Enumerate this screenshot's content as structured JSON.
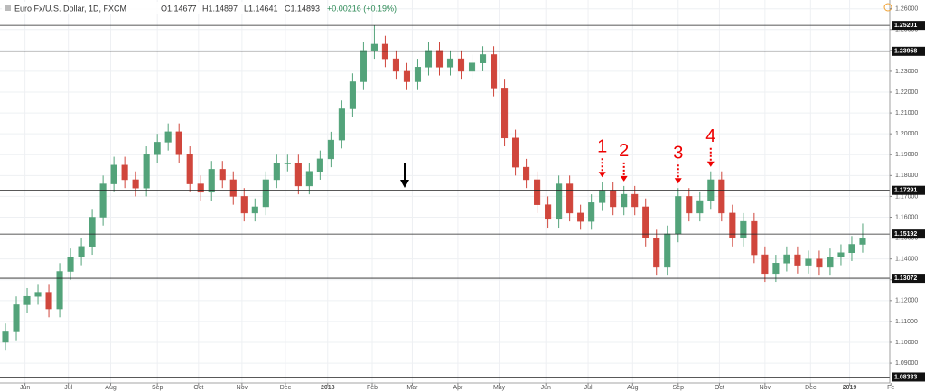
{
  "chart_data": {
    "type": "candlestick",
    "title": "Euro Fx/U.S. Dollar, 1D, FXCM",
    "ohlc_header": [
      "O1.14677",
      "H1.14897",
      "L1.14641",
      "C1.14893",
      "+0.00216 (+0.19%)"
    ],
    "up_color": "#53a37a",
    "down_color": "#d0463c",
    "grid": true,
    "open": [
      1.1,
      1.105,
      1.118,
      1.122,
      1.124,
      1.116,
      1.134,
      1.141,
      1.146,
      1.16,
      1.176,
      1.185,
      1.178,
      1.174,
      1.19,
      1.196,
      1.201,
      1.19,
      1.176,
      1.172,
      1.183,
      1.178,
      1.17,
      1.162,
      1.165,
      1.178,
      1.186,
      1.186,
      1.175,
      1.182,
      1.188,
      1.197,
      1.212,
      1.225,
      1.24,
      1.243,
      1.236,
      1.23,
      1.225,
      1.232,
      1.24,
      1.232,
      1.236,
      1.23,
      1.234,
      1.238,
      1.222,
      1.198,
      1.184,
      1.178,
      1.166,
      1.159,
      1.176,
      1.162,
      1.158,
      1.167,
      1.173,
      1.165,
      1.171,
      1.165,
      1.15,
      1.136,
      1.152,
      1.17,
      1.162,
      1.168,
      1.178,
      1.162,
      1.15,
      1.158,
      1.142,
      1.133,
      1.138,
      1.142,
      1.137,
      1.14,
      1.136,
      1.141,
      1.143,
      1.147
    ],
    "high": [
      1.109,
      1.122,
      1.126,
      1.128,
      1.128,
      1.138,
      1.145,
      1.15,
      1.164,
      1.18,
      1.189,
      1.189,
      1.182,
      1.194,
      1.2,
      1.205,
      1.205,
      1.194,
      1.18,
      1.187,
      1.187,
      1.182,
      1.174,
      1.169,
      1.182,
      1.19,
      1.19,
      1.19,
      1.186,
      1.192,
      1.201,
      1.216,
      1.229,
      1.244,
      1.252,
      1.247,
      1.24,
      1.234,
      1.236,
      1.244,
      1.244,
      1.24,
      1.24,
      1.238,
      1.242,
      1.242,
      1.226,
      1.202,
      1.188,
      1.182,
      1.17,
      1.18,
      1.18,
      1.166,
      1.171,
      1.177,
      1.177,
      1.175,
      1.175,
      1.169,
      1.154,
      1.156,
      1.174,
      1.174,
      1.172,
      1.182,
      1.182,
      1.166,
      1.162,
      1.162,
      1.146,
      1.142,
      1.146,
      1.146,
      1.144,
      1.144,
      1.145,
      1.147,
      1.151,
      1.157
    ],
    "low": [
      1.096,
      1.101,
      1.114,
      1.118,
      1.112,
      1.112,
      1.13,
      1.137,
      1.142,
      1.156,
      1.172,
      1.174,
      1.17,
      1.17,
      1.186,
      1.192,
      1.186,
      1.172,
      1.168,
      1.168,
      1.174,
      1.166,
      1.158,
      1.158,
      1.161,
      1.174,
      1.182,
      1.171,
      1.171,
      1.178,
      1.184,
      1.193,
      1.208,
      1.221,
      1.236,
      1.232,
      1.226,
      1.221,
      1.221,
      1.228,
      1.228,
      1.228,
      1.226,
      1.226,
      1.23,
      1.218,
      1.194,
      1.18,
      1.174,
      1.162,
      1.155,
      1.155,
      1.158,
      1.154,
      1.154,
      1.163,
      1.161,
      1.161,
      1.161,
      1.146,
      1.132,
      1.132,
      1.148,
      1.158,
      1.158,
      1.164,
      1.158,
      1.146,
      1.146,
      1.138,
      1.129,
      1.129,
      1.134,
      1.133,
      1.133,
      1.132,
      1.132,
      1.137,
      1.139,
      1.143
    ],
    "close": [
      1.105,
      1.118,
      1.122,
      1.124,
      1.116,
      1.134,
      1.141,
      1.146,
      1.16,
      1.176,
      1.185,
      1.178,
      1.174,
      1.19,
      1.196,
      1.201,
      1.19,
      1.176,
      1.172,
      1.183,
      1.178,
      1.17,
      1.162,
      1.165,
      1.178,
      1.186,
      1.186,
      1.175,
      1.182,
      1.188,
      1.197,
      1.212,
      1.225,
      1.24,
      1.243,
      1.236,
      1.23,
      1.225,
      1.232,
      1.24,
      1.232,
      1.236,
      1.23,
      1.234,
      1.238,
      1.222,
      1.198,
      1.184,
      1.178,
      1.166,
      1.159,
      1.176,
      1.162,
      1.158,
      1.167,
      1.173,
      1.165,
      1.171,
      1.165,
      1.15,
      1.136,
      1.152,
      1.17,
      1.162,
      1.168,
      1.178,
      1.162,
      1.15,
      1.158,
      1.142,
      1.133,
      1.138,
      1.142,
      1.137,
      1.14,
      1.136,
      1.141,
      1.143,
      1.147,
      1.15
    ],
    "xlim": [
      -0.5,
      81.5
    ],
    "xticks": [
      {
        "value": 1.8,
        "label": "Jun"
      },
      {
        "value": 5.8,
        "label": "Jul"
      },
      {
        "value": 9.7,
        "label": "Aug"
      },
      {
        "value": 14,
        "label": "Sep"
      },
      {
        "value": 17.8,
        "label": "Oct"
      },
      {
        "value": 21.8,
        "label": "Nov"
      },
      {
        "value": 25.8,
        "label": "Dec"
      },
      {
        "value": 29.7,
        "label": "2018"
      },
      {
        "value": 33.8,
        "label": "Feb"
      },
      {
        "value": 37.5,
        "label": "Mar"
      },
      {
        "value": 41.7,
        "label": "Apr"
      },
      {
        "value": 45.5,
        "label": "May"
      },
      {
        "value": 49.8,
        "label": "Jun"
      },
      {
        "value": 53.7,
        "label": "Jul"
      },
      {
        "value": 57.8,
        "label": "Aug"
      },
      {
        "value": 62,
        "label": "Sep"
      },
      {
        "value": 65.8,
        "label": "Oct"
      },
      {
        "value": 70,
        "label": "Nov"
      },
      {
        "value": 74.2,
        "label": "Dec"
      },
      {
        "value": 77.8,
        "label": "2019"
      },
      {
        "value": 81.6,
        "label": "Fe"
      }
    ],
    "ylim": [
      1.0805,
      1.2642
    ],
    "yticks": [
      {
        "value": 1.09,
        "label": "1.09000"
      },
      {
        "value": 1.1,
        "label": "1.10000"
      },
      {
        "value": 1.11,
        "label": "1.11000"
      },
      {
        "value": 1.12,
        "label": "1.12000"
      },
      {
        "value": 1.13,
        "label": "1.13000"
      },
      {
        "value": 1.14,
        "label": "1.14000"
      },
      {
        "value": 1.15,
        "label": "1.15000"
      },
      {
        "value": 1.16,
        "label": "1.16000"
      },
      {
        "value": 1.17,
        "label": "1.17000"
      },
      {
        "value": 1.18,
        "label": "1.18000"
      },
      {
        "value": 1.19,
        "label": "1.19000"
      },
      {
        "value": 1.2,
        "label": "1.20000"
      },
      {
        "value": 1.21,
        "label": "1.21000"
      },
      {
        "value": 1.22,
        "label": "1.22000"
      },
      {
        "value": 1.23,
        "label": "1.23000"
      },
      {
        "value": 1.24,
        "label": "1.24000"
      },
      {
        "value": 1.25,
        "label": "1.25000"
      },
      {
        "value": 1.26,
        "label": "1.26000"
      }
    ],
    "levels": [
      1.25201,
      1.23958,
      1.17291,
      1.15192,
      1.13072,
      1.08333
    ],
    "annotations": [
      {
        "text": "1",
        "candle": 55
      },
      {
        "text": "2",
        "candle": 57
      },
      {
        "text": "3",
        "candle": 62
      },
      {
        "text": "4",
        "candle": 65
      }
    ]
  }
}
